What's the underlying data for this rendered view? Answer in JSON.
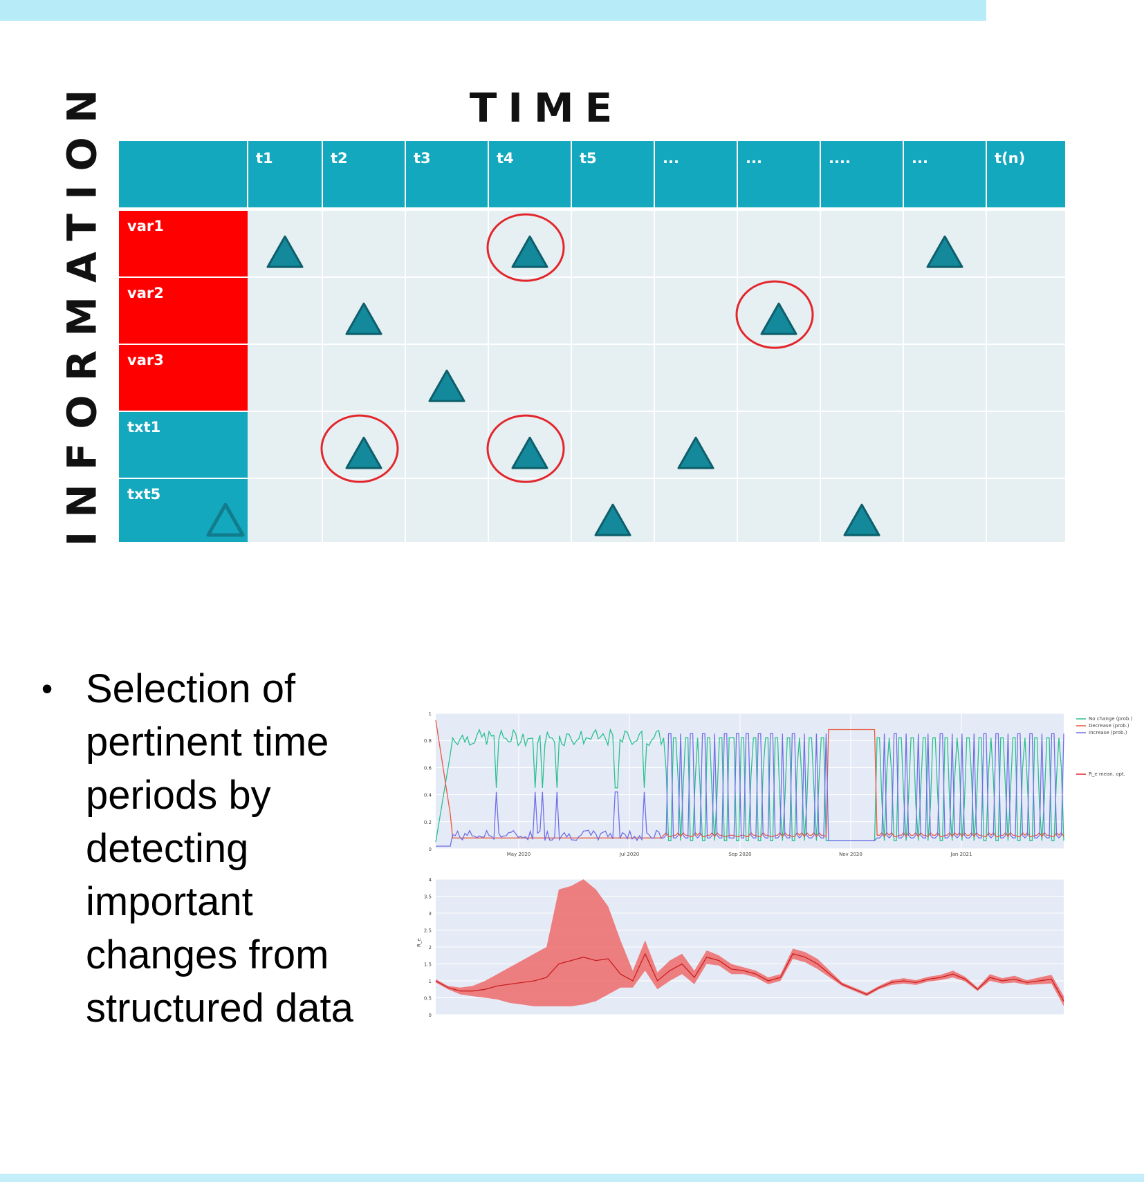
{
  "axes": {
    "y_label": "INFORMATION",
    "x_label": "TIME"
  },
  "grid": {
    "columns": [
      "t1",
      "t2",
      "t3",
      "t4",
      "t5",
      "...",
      "...",
      "....",
      "...",
      "t(n)"
    ],
    "rows": [
      {
        "label": "var1",
        "type": "structured"
      },
      {
        "label": "var2",
        "type": "structured"
      },
      {
        "label": "var3",
        "type": "structured"
      },
      {
        "label": "txt1",
        "type": "text"
      },
      {
        "label": "txt5",
        "type": "text"
      }
    ],
    "events": [
      {
        "row": 0,
        "col": 0,
        "circled": false
      },
      {
        "row": 0,
        "col": 3,
        "circled": true
      },
      {
        "row": 0,
        "col": 8,
        "circled": false
      },
      {
        "row": 1,
        "col": 1,
        "circled": false
      },
      {
        "row": 1,
        "col": 6,
        "circled": true
      },
      {
        "row": 2,
        "col": 2,
        "circled": false
      },
      {
        "row": 3,
        "col": 1,
        "circled": true
      },
      {
        "row": 3,
        "col": 3,
        "circled": true
      },
      {
        "row": 3,
        "col": 5,
        "circled": false
      },
      {
        "row": 4,
        "col": 4,
        "circled": false
      },
      {
        "row": 4,
        "col": 7,
        "circled": false
      }
    ],
    "colors": {
      "header": "#14a8bf",
      "structured": "#ff0000",
      "text": "#14a8bf",
      "cell": "#e6eff2",
      "triangle": "#14899b",
      "circle": "#e3262c"
    }
  },
  "bullet": {
    "marker": "•",
    "text": "Selection of pertinent time periods by detecting important changes from structured data"
  },
  "chart_data": [
    {
      "type": "line",
      "title": "",
      "x_ticks": [
        "May 2020",
        "Jul 2020",
        "Sep 2020",
        "Nov 2020",
        "Jan 2021"
      ],
      "y_ticks": [
        "0",
        "0.2",
        "0.4",
        "0.6",
        "0.8",
        "1"
      ],
      "ylim": [
        0,
        1
      ],
      "legend_position": "right",
      "series": [
        {
          "name": "No change (prob.)",
          "color": "#2bbf8f"
        },
        {
          "name": "Decrease (prob.)",
          "color": "#e8573e"
        },
        {
          "name": "Increase (prob.)",
          "color": "#6f6fe6"
        }
      ]
    },
    {
      "type": "area",
      "title": "",
      "ylabel": "R_e",
      "y_ticks": [
        "0",
        "0.5",
        "1",
        "1.5",
        "2",
        "2.5",
        "3",
        "3.5",
        "4"
      ],
      "ylim": [
        0,
        4
      ],
      "legend_position": "right",
      "series": [
        {
          "name": "R_e mean, opt.",
          "color": "#e3262c",
          "values": [
            1.0,
            0.8,
            0.7,
            0.7,
            0.75,
            0.85,
            0.9,
            0.95,
            1.0,
            1.1,
            1.5,
            1.6,
            1.7,
            1.6,
            1.65,
            1.2,
            1.0,
            1.8,
            1.0,
            1.3,
            1.5,
            1.1,
            1.7,
            1.6,
            1.35,
            1.3,
            1.2,
            1.0,
            1.1,
            1.8,
            1.7,
            1.5,
            1.2,
            0.9,
            0.75,
            0.6,
            0.8,
            0.95,
            1.0,
            0.95,
            1.05,
            1.1,
            1.2,
            1.05,
            0.75,
            1.1,
            1.0,
            1.05,
            0.95,
            1.0,
            1.05,
            0.4
          ],
          "lower": [
            0.95,
            0.75,
            0.6,
            0.55,
            0.5,
            0.45,
            0.35,
            0.3,
            0.25,
            0.25,
            0.25,
            0.25,
            0.3,
            0.4,
            0.6,
            0.8,
            0.8,
            1.3,
            0.75,
            1.0,
            1.2,
            0.9,
            1.5,
            1.45,
            1.2,
            1.2,
            1.1,
            0.9,
            1.0,
            1.65,
            1.55,
            1.35,
            1.1,
            0.85,
            0.7,
            0.55,
            0.75,
            0.88,
            0.92,
            0.88,
            0.98,
            1.02,
            1.1,
            0.98,
            0.7,
            1.0,
            0.92,
            0.95,
            0.88,
            0.9,
            0.92,
            0.25
          ],
          "upper": [
            1.05,
            0.85,
            0.8,
            0.85,
            1.0,
            1.2,
            1.4,
            1.6,
            1.8,
            2.0,
            3.7,
            3.8,
            4.0,
            3.7,
            3.2,
            2.2,
            1.3,
            2.2,
            1.25,
            1.6,
            1.8,
            1.3,
            1.9,
            1.75,
            1.5,
            1.4,
            1.3,
            1.1,
            1.2,
            1.95,
            1.85,
            1.65,
            1.3,
            0.95,
            0.8,
            0.65,
            0.85,
            1.02,
            1.08,
            1.02,
            1.12,
            1.18,
            1.3,
            1.12,
            0.8,
            1.2,
            1.08,
            1.15,
            1.02,
            1.1,
            1.18,
            0.55
          ]
        }
      ]
    }
  ]
}
